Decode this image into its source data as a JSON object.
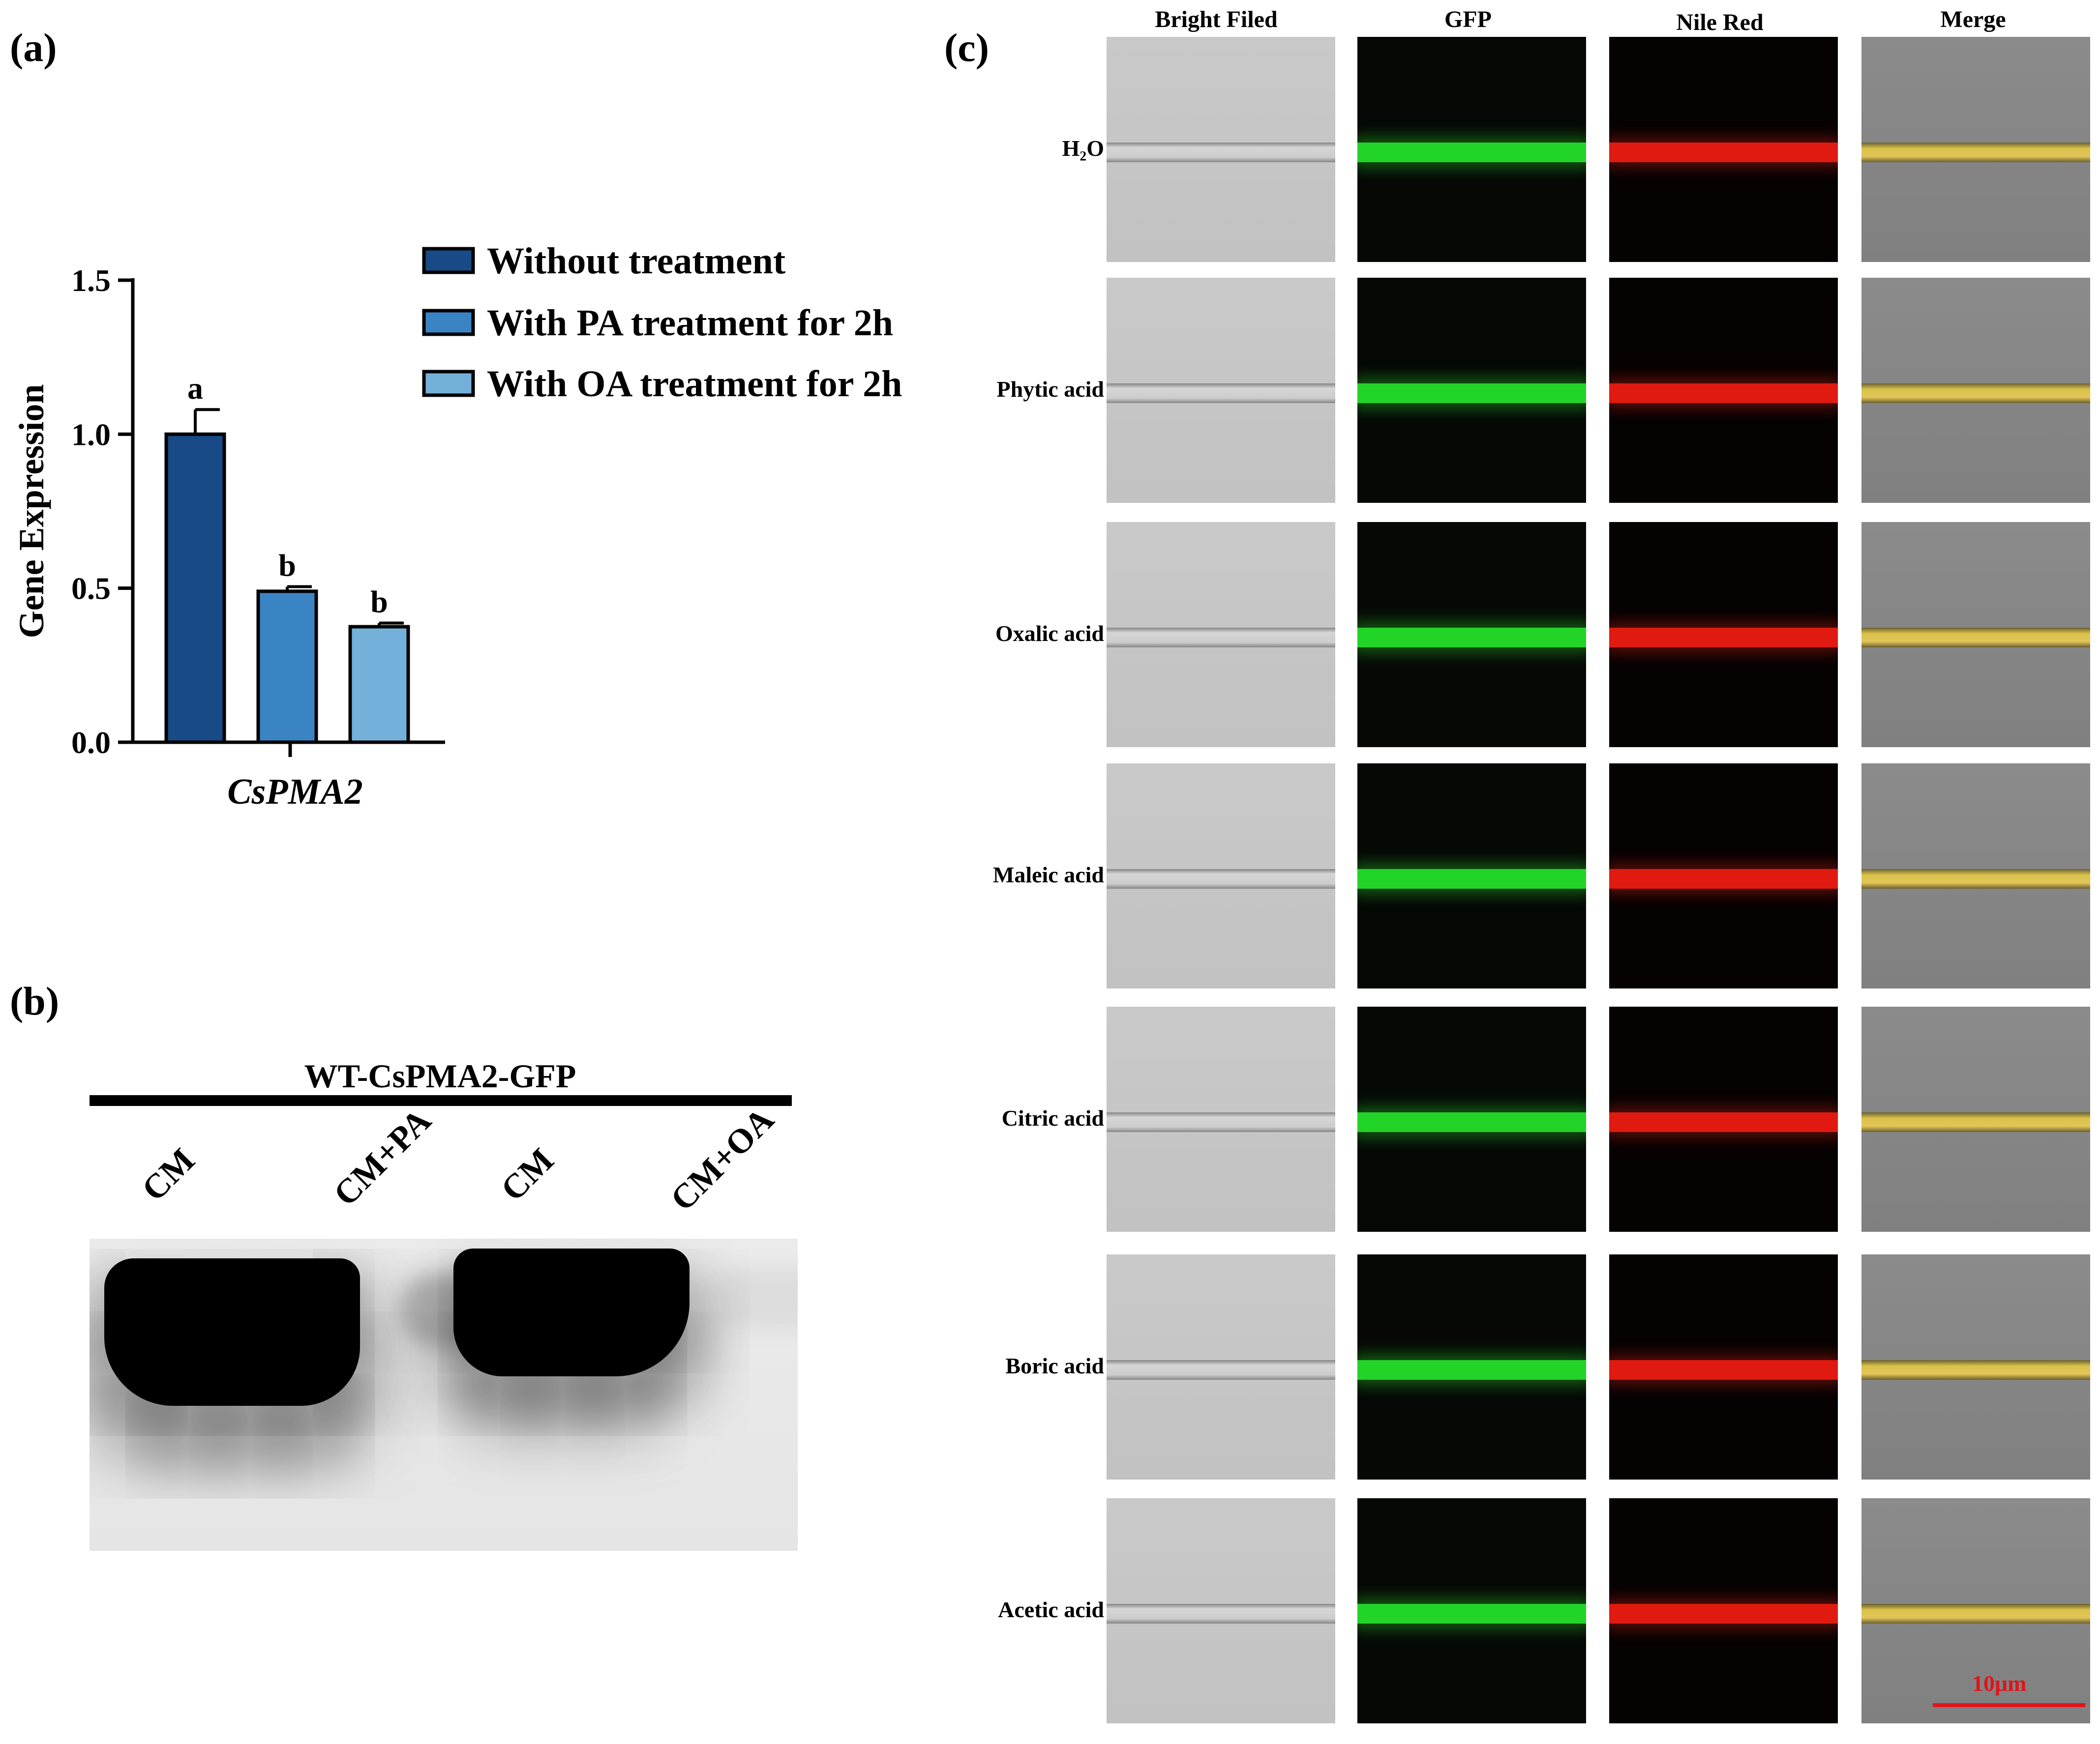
{
  "panels": {
    "a": "(a)",
    "b": "(b)",
    "c": "(c)"
  },
  "chart_data": {
    "type": "bar",
    "ylabel": "Gene Expression",
    "xlabel": "CsPMA2",
    "ylim": [
      0,
      1.5
    ],
    "yticks": [
      "0.0",
      "0.5",
      "1.0",
      "1.5"
    ],
    "categories": [
      "CsPMA2"
    ],
    "series": [
      {
        "name": "Without treatment",
        "value": 1.0,
        "error": 0.08,
        "letter": "a",
        "color": "#174a86"
      },
      {
        "name": "With PA treatment for 2h",
        "value": 0.49,
        "error": 0.015,
        "letter": "b",
        "color": "#3b84c4"
      },
      {
        "name": "With OA treatment for 2h",
        "value": 0.375,
        "error": 0.012,
        "letter": "b",
        "color": "#73b1da"
      }
    ],
    "legend_position": "right"
  },
  "blot": {
    "title": "WT-CsPMA2-GFP",
    "lanes": [
      "CM",
      "CM+PA",
      "CM",
      "CM+OA"
    ],
    "band_intensity": [
      1.0,
      0.12,
      1.0,
      0.03
    ]
  },
  "microscopy": {
    "columns": [
      "Bright Filed",
      "GFP",
      "Nile Red",
      "Merge"
    ],
    "rows": [
      {
        "label": "H₂O"
      },
      {
        "label": "Phytic acid"
      },
      {
        "label": "Oxalic acid"
      },
      {
        "label": "Maleic acid"
      },
      {
        "label": "Citric acid"
      },
      {
        "label": "Boric acid"
      },
      {
        "label": "Acetic acid"
      }
    ],
    "scale_bar": "10μm",
    "colors": {
      "gfp": "#22d428",
      "nile": "#e01a10",
      "merge": "#d9c24a",
      "scale": "#e0141a"
    }
  }
}
